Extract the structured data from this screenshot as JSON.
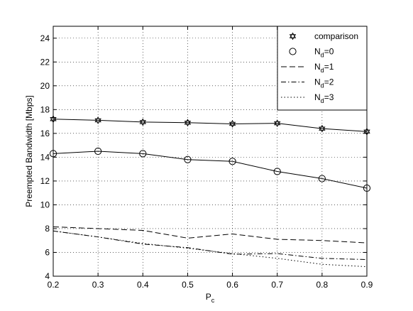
{
  "chart_data": {
    "type": "line",
    "xlabel": "P",
    "xlabel_sub": "c",
    "ylabel": "Preempted Bandwidth [Mbps]",
    "xlim": [
      0.2,
      0.9
    ],
    "ylim": [
      4,
      25
    ],
    "xticks": [
      "0.2",
      "0.3",
      "0.4",
      "0.5",
      "0.6",
      "0.7",
      "0.8",
      "0.9"
    ],
    "yticks": [
      "4",
      "6",
      "8",
      "10",
      "12",
      "14",
      "16",
      "18",
      "20",
      "22",
      "24"
    ],
    "grid": true,
    "legend_position": "top-right",
    "x": [
      0.2,
      0.3,
      0.4,
      0.5,
      0.6,
      0.7,
      0.8,
      0.9
    ],
    "series": [
      {
        "name": "comparison",
        "label_main": "comparison",
        "label_sub": "",
        "label_rest": "",
        "marker": "hexagram",
        "line": "solid",
        "values": [
          17.2,
          17.1,
          16.95,
          16.9,
          16.8,
          16.85,
          16.4,
          16.15
        ]
      },
      {
        "name": "N_d=0",
        "label_main": "N",
        "label_sub": "d",
        "label_rest": "=0",
        "marker": "circle",
        "line": "solid",
        "values": [
          14.3,
          14.5,
          14.3,
          13.8,
          13.65,
          12.8,
          12.2,
          11.4
        ]
      },
      {
        "name": "N_d=1",
        "label_main": "N",
        "label_sub": "d",
        "label_rest": "=1",
        "marker": "none",
        "line": "dashed",
        "values": [
          8.15,
          8.0,
          7.85,
          7.2,
          7.55,
          7.1,
          7.0,
          6.8
        ]
      },
      {
        "name": "N_d=2",
        "label_main": "N",
        "label_sub": "d",
        "label_rest": "=2",
        "marker": "none",
        "line": "dashdot",
        "values": [
          7.8,
          7.3,
          6.7,
          6.4,
          5.85,
          5.9,
          5.5,
          5.4
        ]
      },
      {
        "name": "N_d=3",
        "label_main": "N",
        "label_sub": "d",
        "label_rest": "=3",
        "marker": "none",
        "line": "dotted",
        "values": [
          7.8,
          7.3,
          6.75,
          6.35,
          5.9,
          5.5,
          5.0,
          4.8
        ]
      }
    ]
  }
}
